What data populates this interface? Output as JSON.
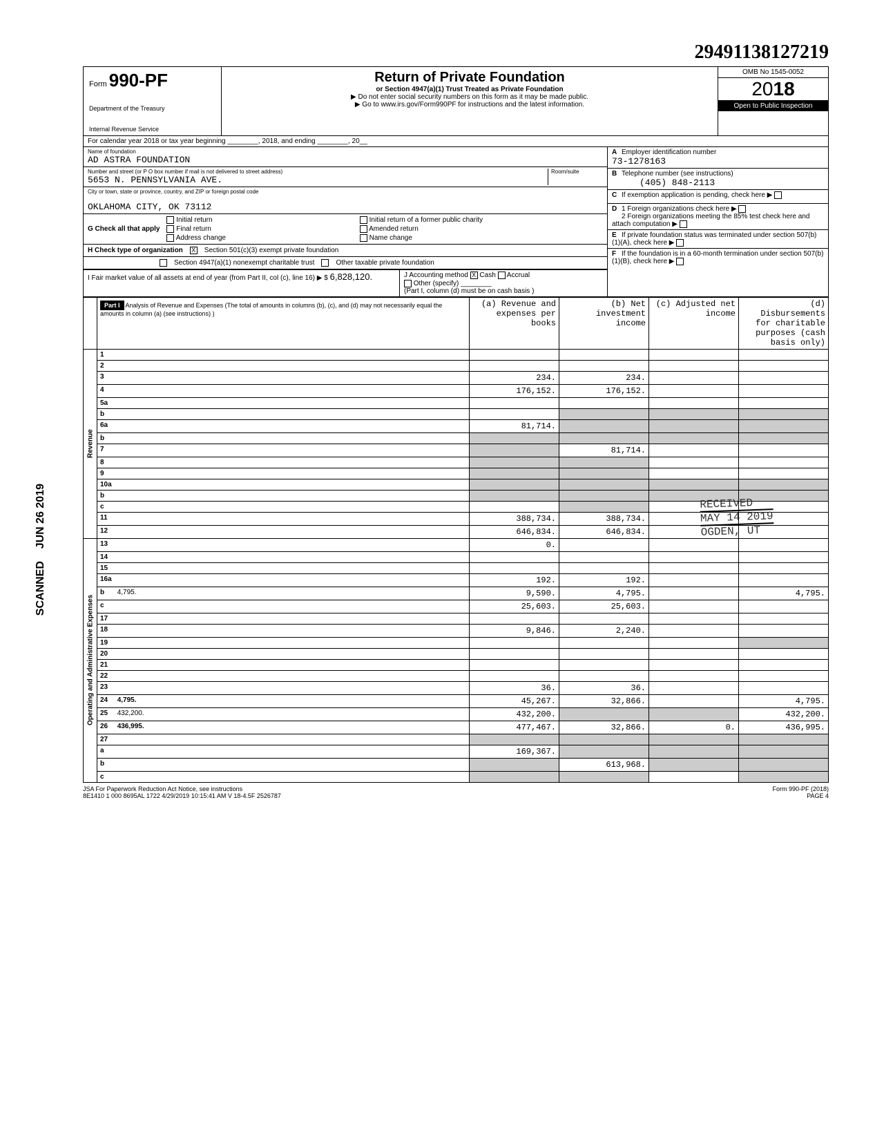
{
  "top_number": "29491138127219",
  "form": {
    "prefix": "Form",
    "number": "990-PF",
    "dept1": "Department of the Treasury",
    "dept2": "Internal Revenue Service"
  },
  "title": {
    "main": "Return of Private Foundation",
    "sub": "or Section 4947(a)(1) Trust Treated as Private Foundation",
    "note1": "▶ Do not enter social security numbers on this form as it may be made public.",
    "note2": "▶ Go to www.irs.gov/Form990PF for instructions and the latest information."
  },
  "meta": {
    "omb": "OMB No 1545-0052",
    "year": "2018",
    "year_styled_prefix": "20",
    "year_styled_suffix": "18",
    "open": "Open to Public Inspection"
  },
  "calendar": "For calendar year 2018 or tax year beginning ________, 2018, and ending ________, 20__",
  "foundation": {
    "name_label": "Name of foundation",
    "name": "AD ASTRA FOUNDATION",
    "addr_label": "Number and street (or P O box number if mail is not delivered to street address)",
    "addr": "5653 N. PENNSYLVANIA AVE.",
    "room_label": "Room/suite",
    "city_label": "City or town, state or province, country, and ZIP or foreign postal code",
    "city": "OKLAHOMA CITY, OK 73112"
  },
  "right_boxes": {
    "A": "Employer identification number",
    "A_val": "73-1278163",
    "B": "Telephone number (see instructions)",
    "B_val": "(405) 848-2113",
    "C": "If exemption application is pending, check here",
    "D1": "1 Foreign organizations check here",
    "D2": "2 Foreign organizations meeting the 85% test check here and attach computation",
    "E": "If private foundation status was terminated under section 507(b)(1)(A), check here",
    "F": "If the foundation is in a 60-month termination under section 507(b)(1)(B), check here"
  },
  "G": {
    "label": "G Check all that apply",
    "opts": [
      "Initial return",
      "Final return",
      "Address change",
      "Initial return of a former public charity",
      "Amended return",
      "Name change"
    ]
  },
  "H": {
    "label": "H Check type of organization",
    "opt1": "Section 501(c)(3) exempt private foundation",
    "opt2": "Section 4947(a)(1) nonexempt charitable trust",
    "opt3": "Other taxable private foundation"
  },
  "I": {
    "label": "I Fair market value of all assets at end of year (from Part II, col (c), line 16) ▶ $",
    "value": "6,828,120."
  },
  "J": {
    "label": "J Accounting method",
    "opts": [
      "Cash",
      "Accrual",
      "Other (specify)"
    ],
    "note": "(Part I, column (d) must be on cash basis )"
  },
  "part1": {
    "header": "Part I",
    "title": "Analysis of Revenue and Expenses (The total of amounts in columns (b), (c), and (d) may not necessarily equal the amounts in column (a) (see instructions) )",
    "col_a": "(a) Revenue and expenses per books",
    "col_b": "(b) Net investment income",
    "col_c": "(c) Adjusted net income",
    "col_d": "(d) Disbursements for charitable purposes (cash basis only)"
  },
  "revenue_label": "Revenue",
  "expenses_label": "Operating and Administrative Expenses",
  "lines": [
    {
      "n": "1",
      "d": "",
      "a": "",
      "b": "",
      "c": ""
    },
    {
      "n": "2",
      "d": "",
      "a": "",
      "b": "",
      "c": ""
    },
    {
      "n": "3",
      "d": "",
      "a": "234.",
      "b": "234.",
      "c": ""
    },
    {
      "n": "4",
      "d": "",
      "a": "176,152.",
      "b": "176,152.",
      "c": ""
    },
    {
      "n": "5a",
      "d": "",
      "a": "",
      "b": "",
      "c": ""
    },
    {
      "n": "b",
      "d": "",
      "a": "",
      "b": "",
      "c": "",
      "shade_bcd": true
    },
    {
      "n": "6a",
      "d": "",
      "a": "81,714.",
      "b": "",
      "c": "",
      "shade_bcd": true
    },
    {
      "n": "b",
      "d": "",
      "a": "",
      "b": "",
      "c": "",
      "shade_all": true
    },
    {
      "n": "7",
      "d": "",
      "a": "",
      "b": "81,714.",
      "c": "",
      "shade_a": true
    },
    {
      "n": "8",
      "d": "",
      "a": "",
      "b": "",
      "c": "",
      "shade_ab": true
    },
    {
      "n": "9",
      "d": "",
      "a": "",
      "b": "",
      "c": "",
      "shade_ab": true
    },
    {
      "n": "10a",
      "d": "",
      "a": "",
      "b": "",
      "c": "",
      "shade_all": true
    },
    {
      "n": "b",
      "d": "",
      "a": "",
      "b": "",
      "c": "",
      "shade_all": true
    },
    {
      "n": "c",
      "d": "",
      "a": "",
      "b": "",
      "c": "",
      "shade_b": true
    },
    {
      "n": "11",
      "d": "",
      "a": "388,734.",
      "b": "388,734.",
      "c": ""
    },
    {
      "n": "12",
      "d": "",
      "a": "646,834.",
      "b": "646,834.",
      "c": "",
      "bold": true
    }
  ],
  "exp_lines": [
    {
      "n": "13",
      "d": "",
      "a": "0.",
      "b": "",
      "c": ""
    },
    {
      "n": "14",
      "d": "",
      "a": "",
      "b": "",
      "c": ""
    },
    {
      "n": "15",
      "d": "",
      "a": "",
      "b": "",
      "c": ""
    },
    {
      "n": "16a",
      "d": "",
      "a": "192.",
      "b": "192.",
      "c": ""
    },
    {
      "n": "b",
      "d": "4,795.",
      "a": "9,590.",
      "b": "4,795.",
      "c": ""
    },
    {
      "n": "c",
      "d": "",
      "a": "25,603.",
      "b": "25,603.",
      "c": ""
    },
    {
      "n": "17",
      "d": "",
      "a": "",
      "b": "",
      "c": ""
    },
    {
      "n": "18",
      "d": "",
      "a": "9,846.",
      "b": "2,240.",
      "c": ""
    },
    {
      "n": "19",
      "d": "",
      "a": "",
      "b": "",
      "c": "",
      "shade_d": true
    },
    {
      "n": "20",
      "d": "",
      "a": "",
      "b": "",
      "c": ""
    },
    {
      "n": "21",
      "d": "",
      "a": "",
      "b": "",
      "c": ""
    },
    {
      "n": "22",
      "d": "",
      "a": "",
      "b": "",
      "c": ""
    },
    {
      "n": "23",
      "d": "",
      "a": "36.",
      "b": "36.",
      "c": ""
    },
    {
      "n": "24",
      "d": "4,795.",
      "a": "45,267.",
      "b": "32,866.",
      "c": "",
      "bold": true
    },
    {
      "n": "25",
      "d": "432,200.",
      "a": "432,200.",
      "b": "",
      "c": "",
      "shade_bc": true
    },
    {
      "n": "26",
      "d": "436,995.",
      "a": "477,467.",
      "b": "32,866.",
      "c": "0.",
      "bold": true
    },
    {
      "n": "27",
      "d": "",
      "a": "",
      "b": "",
      "c": "",
      "shade_all": true
    },
    {
      "n": "a",
      "d": "",
      "a": "169,367.",
      "b": "",
      "c": "",
      "shade_bcd": true
    },
    {
      "n": "b",
      "d": "",
      "a": "",
      "b": "613,968.",
      "c": "",
      "shade_acd": true
    },
    {
      "n": "c",
      "d": "",
      "a": "",
      "b": "",
      "c": "",
      "shade_abd": true
    }
  ],
  "stamps": {
    "received": "RECEIVED",
    "may": "MAY 14 2019",
    "ogden": "OGDEN, UT",
    "scanned": "SCANNED",
    "date_side": "JUN 26 2019"
  },
  "footer": {
    "jsa": "JSA For Paperwork Reduction Act Notice, see instructions",
    "form": "Form 990-PF (2018)",
    "bottom": "8E1410 1 000  8695AL 1722  4/29/2019   10:15:41 AM  V 18-4.5F          2526787",
    "page": "PAGE 4"
  }
}
